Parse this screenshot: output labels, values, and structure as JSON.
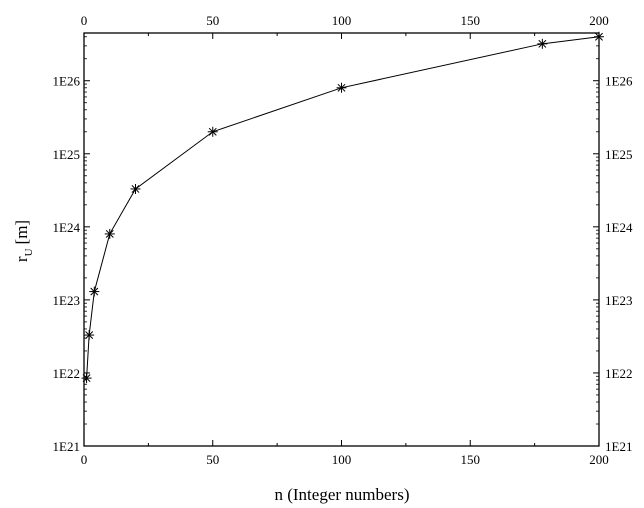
{
  "chart_data": {
    "type": "line",
    "title": "",
    "xlabel": "n (Integer numbers)",
    "ylabel_main": "r",
    "ylabel_sub": "U",
    "ylabel_unit": "[m]",
    "xlim": [
      0,
      200
    ],
    "ylim": [
      1e+21,
      4.5e+26
    ],
    "yscale": "log",
    "grid": false,
    "legend": "none",
    "x_ticks": [
      0,
      50,
      100,
      150,
      200
    ],
    "x_tick_labels": [
      "0",
      "50",
      "100",
      "150",
      "200"
    ],
    "y_ticks": [
      1e+21,
      1e+22,
      1e+23,
      1e+24,
      1e+25,
      1e+26
    ],
    "y_tick_labels": [
      "1E21",
      "1E22",
      "1E23",
      "1E24",
      "1E25",
      "1E26"
    ],
    "marker": "asterisk",
    "line_color": "#000000",
    "series": [
      {
        "x": [
          1,
          2,
          4,
          10,
          20,
          50,
          100,
          178,
          200
        ],
        "y": [
          8.5e+21,
          3.3e+22,
          1.3e+23,
          8e+23,
          3.3e+24,
          2e+25,
          8e+25,
          3.2e+26,
          4e+26
        ]
      }
    ]
  }
}
